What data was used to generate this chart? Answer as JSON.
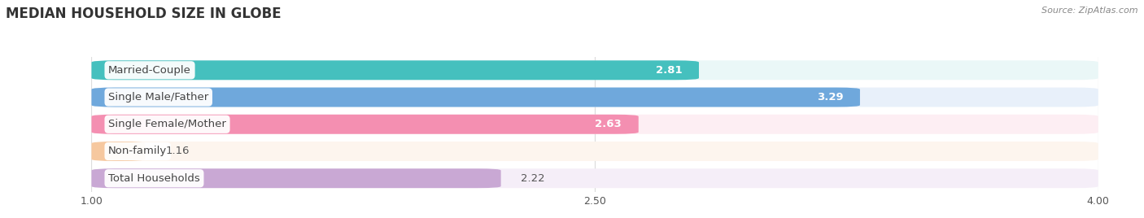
{
  "title": "MEDIAN HOUSEHOLD SIZE IN GLOBE",
  "source": "Source: ZipAtlas.com",
  "categories": [
    "Married-Couple",
    "Single Male/Father",
    "Single Female/Mother",
    "Non-family",
    "Total Households"
  ],
  "values": [
    2.81,
    3.29,
    2.63,
    1.16,
    2.22
  ],
  "bar_colors": [
    "#45c0be",
    "#6fa8dc",
    "#f48fb1",
    "#f6c89f",
    "#c9a8d4"
  ],
  "bar_bg_colors": [
    "#eaf7f7",
    "#e8f0fa",
    "#fdeef3",
    "#fdf5ee",
    "#f5eef8"
  ],
  "x_ticks": [
    1.0,
    2.5,
    4.0
  ],
  "x_min": 1.0,
  "x_max": 4.0,
  "title_fontsize": 12,
  "label_fontsize": 9.5,
  "value_fontsize": 9.5,
  "bg_color": "#ffffff",
  "grid_color": "#dddddd",
  "text_color": "#555555",
  "value_color_inside": "#ffffff",
  "value_color_outside": "#555555"
}
